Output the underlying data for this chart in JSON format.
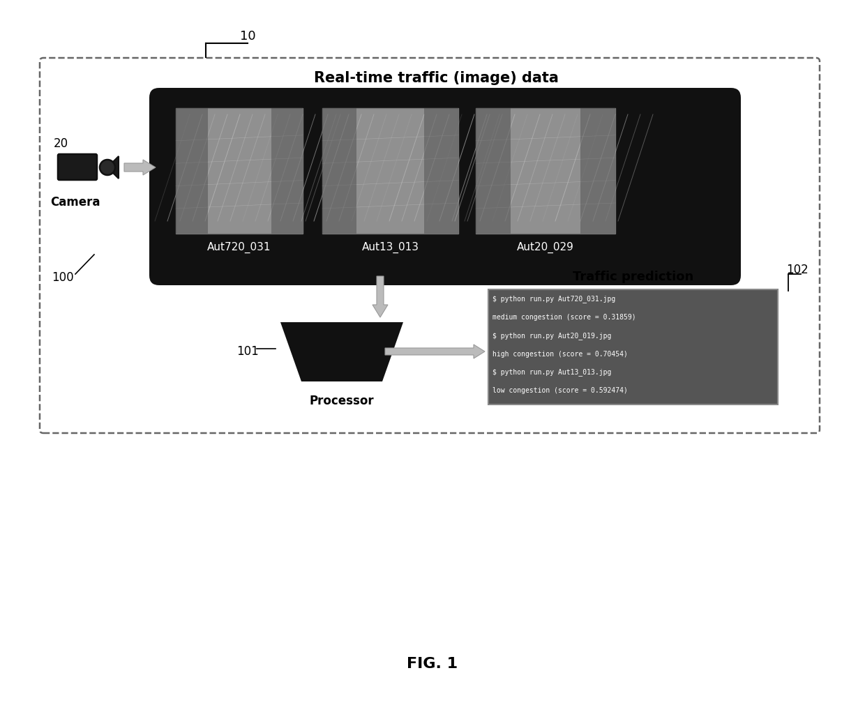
{
  "title": "FIG. 1",
  "main_label": "Real-time traffic (image) data",
  "camera_label": "Camera",
  "camera_ref": "20",
  "processor_label": "Processor",
  "processor_ref": "101",
  "system_ref": "10",
  "box_ref": "100",
  "prediction_ref": "102",
  "prediction_title": "Traffic prediction",
  "prediction_lines": [
    "$ python run.py Aut720_031.jpg",
    "medium congestion (score = 0.31859)",
    "$ python run.py Aut20_019.jpg",
    "high congestion (score = 0.70454)",
    "$ python run.py Aut13_013.jpg",
    "low congestion (score = 0.592474)"
  ],
  "image_labels": [
    "Aut720_031",
    "Aut13_013",
    "Aut20_029"
  ],
  "bg_color": "#ffffff",
  "dashed_box_color": "#666666",
  "black_panel_color": "#111111",
  "terminal_bg": "#555555"
}
